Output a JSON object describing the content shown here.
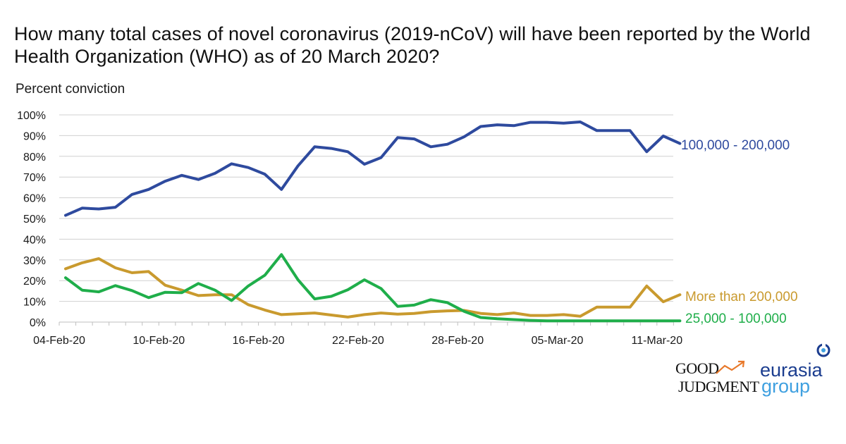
{
  "title": "How many total cases of novel coronavirus (2019-nCoV) will have been reported by the World Health Organization (WHO) as of 20 March 2020?",
  "logos": {
    "good_judgment_line1": "GOOD",
    "good_judgment_line2": "JUDGMENT",
    "eurasia_line1": "eurasia",
    "eurasia_line2": "group"
  },
  "colors": {
    "series_blue": "#2e4a9e",
    "series_gold": "#c99a2e",
    "series_green": "#1fae4a",
    "grid": "#d0d0d0",
    "gj_arrow": "#e8792b",
    "eurasia_blue": "#1b3d8f",
    "eurasia_light": "#3fa0e0"
  },
  "chart_data": {
    "type": "line",
    "ylabel": "Percent conviction",
    "xlabel": "",
    "ylim": [
      0,
      100
    ],
    "yticks": [
      "0%",
      "10%",
      "20%",
      "30%",
      "40%",
      "50%",
      "60%",
      "70%",
      "80%",
      "90%",
      "100%"
    ],
    "grid": true,
    "x_tick_labels": [
      "04-Feb-20",
      "10-Feb-20",
      "16-Feb-20",
      "22-Feb-20",
      "28-Feb-20",
      "05-Mar-20",
      "11-Mar-20"
    ],
    "x_tick_indices": [
      0,
      6,
      12,
      18,
      24,
      30,
      36
    ],
    "legend_placement": "right, labels at line ends",
    "x": [
      "04-Feb-20",
      "05-Feb-20",
      "06-Feb-20",
      "07-Feb-20",
      "08-Feb-20",
      "09-Feb-20",
      "10-Feb-20",
      "11-Feb-20",
      "12-Feb-20",
      "13-Feb-20",
      "14-Feb-20",
      "15-Feb-20",
      "16-Feb-20",
      "17-Feb-20",
      "18-Feb-20",
      "19-Feb-20",
      "20-Feb-20",
      "21-Feb-20",
      "22-Feb-20",
      "23-Feb-20",
      "24-Feb-20",
      "25-Feb-20",
      "26-Feb-20",
      "27-Feb-20",
      "28-Feb-20",
      "29-Feb-20",
      "01-Mar-20",
      "02-Mar-20",
      "03-Mar-20",
      "04-Mar-20",
      "05-Mar-20",
      "06-Mar-20",
      "07-Mar-20",
      "08-Mar-20",
      "09-Mar-20",
      "10-Mar-20",
      "11-Mar-20",
      "12-Mar-20"
    ],
    "series": [
      {
        "name": "100,000 - 200,000",
        "color": "#2e4a9e",
        "values": [
          51.5,
          55,
          54.6,
          55.4,
          61.6,
          64,
          68,
          70.8,
          68.8,
          71.8,
          76.4,
          74.6,
          71.4,
          64,
          75.4,
          84.6,
          83.8,
          82.2,
          76.2,
          79.4,
          89,
          88.4,
          84.6,
          85.8,
          89.4,
          94.4,
          95.2,
          94.8,
          96.4,
          96.4,
          96,
          96.6,
          92.4,
          92.4,
          92.4,
          82.2,
          89.8,
          86.2
        ]
      },
      {
        "name": "More than 200,000",
        "color": "#c99a2e",
        "values": [
          25.7,
          28.6,
          30.6,
          26.2,
          23.8,
          24.4,
          17.8,
          15.4,
          12.8,
          13.2,
          13.2,
          8.4,
          5.8,
          3.6,
          4,
          4.4,
          3.4,
          2.4,
          3.6,
          4.4,
          3.8,
          4.2,
          5,
          5.4,
          5.6,
          4.2,
          3.6,
          4.4,
          3.2,
          3.2,
          3.6,
          2.8,
          7.2,
          7.2,
          7.2,
          17.4,
          9.8,
          13.2
        ]
      },
      {
        "name": "25,000 - 100,000",
        "color": "#1fae4a",
        "values": [
          21.4,
          15.4,
          14.6,
          17.6,
          15.2,
          11.8,
          14.4,
          14.2,
          18.6,
          15.4,
          10.4,
          17.4,
          22.6,
          32.6,
          20.4,
          11.2,
          12.4,
          15.6,
          20.4,
          16.2,
          7.6,
          8.2,
          10.8,
          9.4,
          5.2,
          2.2,
          1.6,
          1.2,
          0.8,
          0.6,
          0.6,
          0.6,
          0.6,
          0.6,
          0.6,
          0.6,
          0.6,
          0.6
        ]
      }
    ]
  }
}
